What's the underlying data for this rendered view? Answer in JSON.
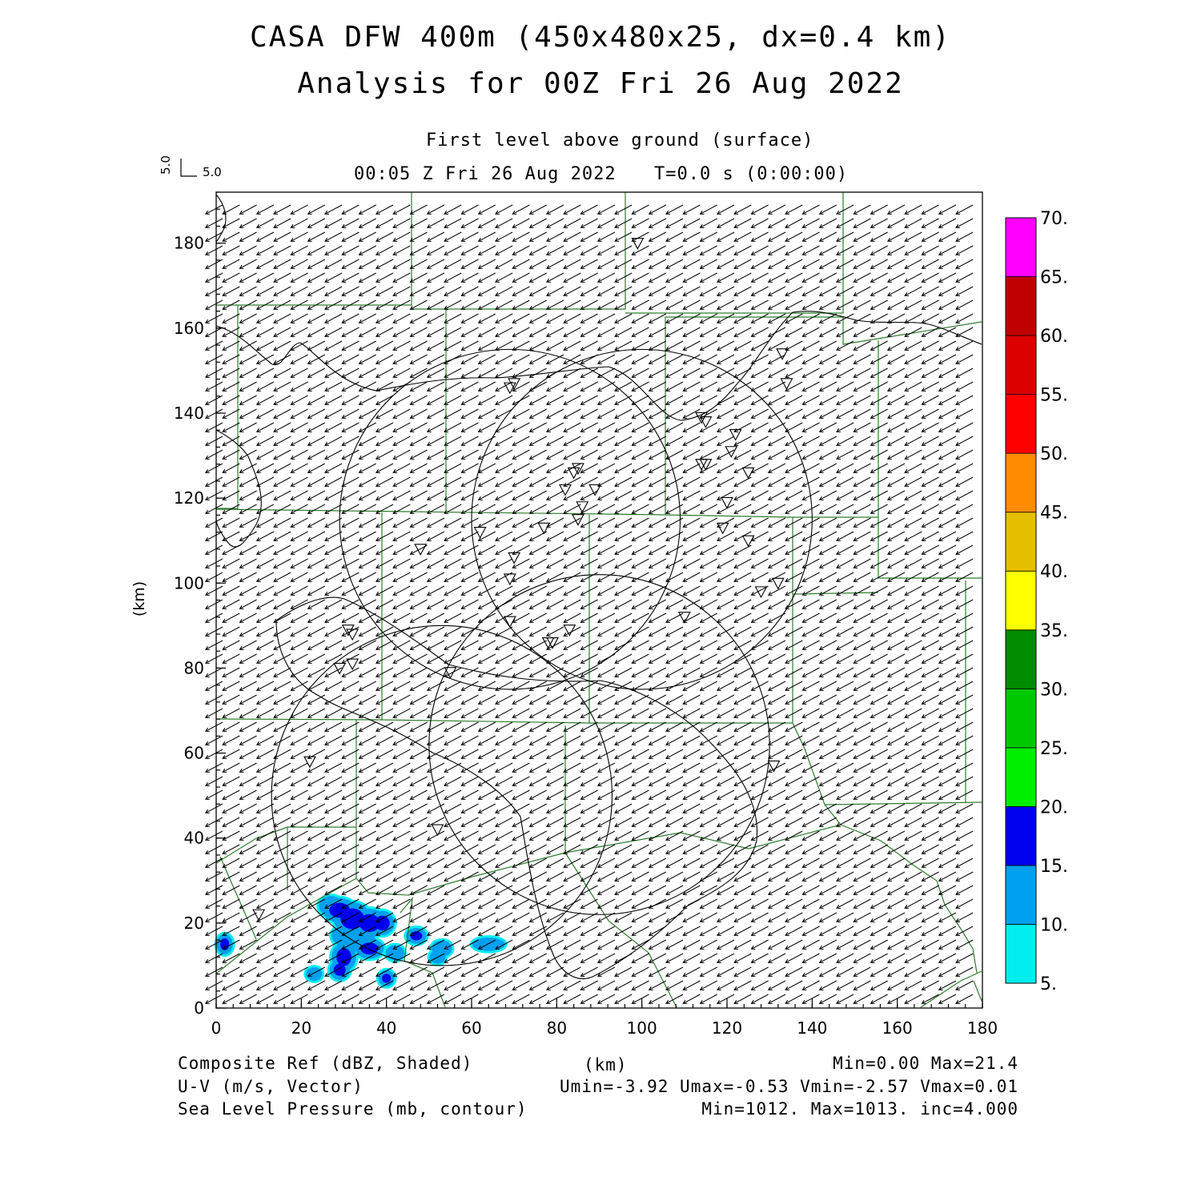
{
  "header": {
    "title_line1": "CASA DFW 400m (450x480x25, dx=0.4 km)",
    "title_line2": "Analysis for 00Z Fri 26 Aug 2022",
    "level": "First level above ground (surface)",
    "valid_time": "00:05 Z Fri 26 Aug 2022",
    "model_time": "T=0.0 s (0:00:00)",
    "vector_key_v": "5.0",
    "vector_key_u": "5.0"
  },
  "axes": {
    "x_label": "(km)",
    "y_label": "(km)",
    "x_ticks": [
      "0",
      "20",
      "40",
      "60",
      "80",
      "100",
      "120",
      "140",
      "160",
      "180"
    ],
    "y_ticks": [
      "0",
      "20",
      "40",
      "60",
      "80",
      "100",
      "120",
      "140",
      "160",
      "180"
    ]
  },
  "colorbar": {
    "labels": [
      "5.",
      "10.",
      "15.",
      "20.",
      "25.",
      "30.",
      "35.",
      "40.",
      "45.",
      "50.",
      "55.",
      "60.",
      "65.",
      "70."
    ],
    "colors": [
      "#00eeee",
      "#00a0f0",
      "#0000ee",
      "#00ee00",
      "#00c800",
      "#008c00",
      "#ffff00",
      "#e6be00",
      "#ff8c00",
      "#ff0000",
      "#dc0000",
      "#c00000",
      "#ff00ff"
    ]
  },
  "footer": {
    "line1_left": "Composite Ref (dBZ, Shaded)",
    "line1_center": "(km)",
    "line1_right": "Min=0.00 Max=21.4",
    "line2_left": "U-V (m/s, Vector)",
    "line2_right": "Umin=-3.92 Umax=-0.53 Vmin=-2.57 Vmax=0.01",
    "line3_left": "Sea Level Pressure (mb, contour)",
    "line3_right": "Min=1012. Max=1013. inc=4.000"
  },
  "map": {
    "x_range_km": [
      0,
      180
    ],
    "y_range_km": [
      0,
      192
    ],
    "wind_u_typical": -3.0,
    "wind_v_typical": -1.6,
    "radar_rings_km": [
      {
        "cx": 69,
        "cy": 115,
        "r": 40
      },
      {
        "cx": 100,
        "cy": 115,
        "r": 40
      },
      {
        "cx": 90,
        "cy": 62,
        "r": 40
      },
      {
        "cx": 53,
        "cy": 50,
        "r": 40
      }
    ],
    "stations_km": [
      [
        99,
        180
      ],
      [
        70,
        147
      ],
      [
        69,
        146
      ],
      [
        133,
        154
      ],
      [
        134,
        147
      ],
      [
        114,
        139
      ],
      [
        115,
        138
      ],
      [
        122,
        135
      ],
      [
        121,
        131
      ],
      [
        114,
        128
      ],
      [
        115,
        128
      ],
      [
        125,
        126
      ],
      [
        85,
        127
      ],
      [
        84,
        126
      ],
      [
        82,
        122
      ],
      [
        89,
        122
      ],
      [
        86,
        118
      ],
      [
        85,
        115
      ],
      [
        120,
        119
      ],
      [
        62,
        112
      ],
      [
        77,
        113
      ],
      [
        119,
        113
      ],
      [
        125,
        110
      ],
      [
        48,
        108
      ],
      [
        70,
        106
      ],
      [
        69,
        101
      ],
      [
        132,
        100
      ],
      [
        128,
        98
      ],
      [
        31,
        89
      ],
      [
        32,
        88
      ],
      [
        83,
        89
      ],
      [
        78,
        86
      ],
      [
        79,
        86
      ],
      [
        69,
        91
      ],
      [
        110,
        92
      ],
      [
        29,
        80
      ],
      [
        32,
        81
      ],
      [
        55,
        79
      ],
      [
        22,
        58
      ],
      [
        131,
        57
      ],
      [
        52,
        42
      ],
      [
        10,
        22
      ]
    ],
    "reflectivity_cells_km": [
      {
        "x": 27,
        "y": 24,
        "rx": 2.5,
        "ry": 2.0,
        "dbz": 10
      },
      {
        "x": 29,
        "y": 23,
        "rx": 3.5,
        "ry": 2.5,
        "dbz": 15
      },
      {
        "x": 32,
        "y": 21,
        "rx": 4.0,
        "ry": 3.5,
        "dbz": 15
      },
      {
        "x": 36,
        "y": 20,
        "rx": 3.5,
        "ry": 3.0,
        "dbz": 15
      },
      {
        "x": 39,
        "y": 20,
        "rx": 2.5,
        "ry": 2.5,
        "dbz": 15
      },
      {
        "x": 30,
        "y": 17,
        "rx": 2.5,
        "ry": 2.0,
        "dbz": 10
      },
      {
        "x": 34,
        "y": 16,
        "rx": 3.0,
        "ry": 2.5,
        "dbz": 10
      },
      {
        "x": 36,
        "y": 14,
        "rx": 3.0,
        "ry": 2.0,
        "dbz": 15
      },
      {
        "x": 30,
        "y": 12,
        "rx": 2.5,
        "ry": 3.0,
        "dbz": 15
      },
      {
        "x": 29,
        "y": 9,
        "rx": 2.0,
        "ry": 2.0,
        "dbz": 15
      },
      {
        "x": 42,
        "y": 13,
        "rx": 1.8,
        "ry": 1.4,
        "dbz": 10
      },
      {
        "x": 47,
        "y": 17,
        "rx": 2.0,
        "ry": 1.5,
        "dbz": 15
      },
      {
        "x": 53,
        "y": 14,
        "rx": 2.0,
        "ry": 1.5,
        "dbz": 10
      },
      {
        "x": 52,
        "y": 12,
        "rx": 1.5,
        "ry": 1.2,
        "dbz": 10
      },
      {
        "x": 64,
        "y": 15,
        "rx": 3.5,
        "ry": 1.2,
        "dbz": 10
      },
      {
        "x": 40,
        "y": 7,
        "rx": 1.5,
        "ry": 1.5,
        "dbz": 15
      },
      {
        "x": 23,
        "y": 8,
        "rx": 1.5,
        "ry": 1.2,
        "dbz": 10
      },
      {
        "x": 2,
        "y": 15,
        "rx": 1.5,
        "ry": 2.0,
        "dbz": 15
      }
    ]
  }
}
